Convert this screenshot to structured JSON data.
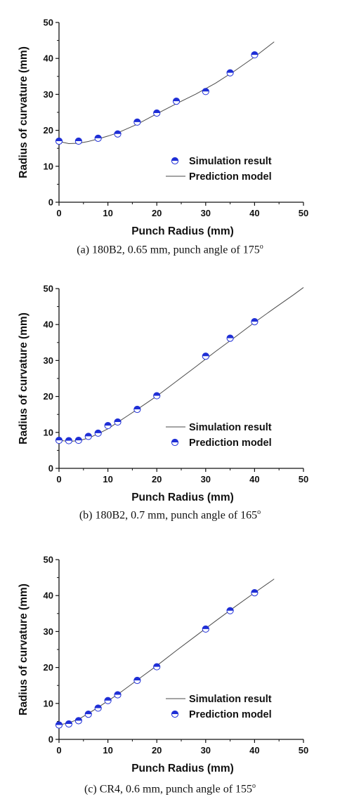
{
  "colors": {
    "marker": "#1f2fd6",
    "line": "#4a4a4a",
    "axis": "#111111"
  },
  "chart_data": [
    {
      "type": "line",
      "caption": "(a) 180B2, 0.65 mm, punch angle of 175",
      "caption_sup": "o",
      "xlabel": "Punch Radius (mm)",
      "ylabel": "Radius of curvature (mm)",
      "xlim": [
        0,
        50
      ],
      "ylim": [
        0,
        50
      ],
      "xticks": [
        "0",
        "10",
        "20",
        "30",
        "40",
        "50"
      ],
      "yticks": [
        "0",
        "10",
        "20",
        "30",
        "40",
        "50"
      ],
      "legend": [
        {
          "label": "Simulation result",
          "kind": "marker"
        },
        {
          "label": "Prediction model",
          "kind": "line"
        }
      ],
      "series": [
        {
          "kind": "marker",
          "x": [
            0,
            4,
            8,
            12,
            16,
            20,
            24,
            30,
            35,
            40
          ],
          "y": [
            17.0,
            17.0,
            17.8,
            19.0,
            22.3,
            24.8,
            28.1,
            30.8,
            36.0,
            41.0
          ]
        },
        {
          "kind": "line",
          "x": [
            0,
            1,
            2,
            4,
            6,
            8,
            10,
            12,
            16,
            20,
            24,
            28,
            32,
            36,
            40,
            44
          ],
          "y": [
            17.0,
            16.6,
            16.3,
            16.4,
            16.9,
            17.6,
            18.4,
            19.3,
            21.7,
            24.6,
            27.4,
            30.1,
            33.1,
            36.6,
            40.4,
            44.6
          ]
        }
      ]
    },
    {
      "type": "line",
      "caption": "(b) 180B2, 0.7 mm, punch angle of 165",
      "caption_sup": "o",
      "xlabel": "Punch Radius (mm)",
      "ylabel": "Radius of curvature (mm)",
      "xlim": [
        0,
        50
      ],
      "ylim": [
        0,
        50
      ],
      "xticks": [
        "0",
        "10",
        "20",
        "30",
        "40",
        "50"
      ],
      "yticks": [
        "0",
        "10",
        "20",
        "30",
        "40",
        "50"
      ],
      "legend": [
        {
          "label": "Simulation result",
          "kind": "line"
        },
        {
          "label": "Prediction model",
          "kind": "marker"
        }
      ],
      "series": [
        {
          "kind": "marker",
          "x": [
            0,
            2,
            4,
            6,
            8,
            10,
            12,
            16,
            20,
            30,
            35,
            40
          ],
          "y": [
            7.8,
            7.7,
            7.8,
            8.9,
            9.8,
            11.9,
            12.9,
            16.4,
            20.2,
            31.2,
            36.2,
            40.8
          ]
        },
        {
          "kind": "line",
          "x": [
            0,
            2,
            4,
            6,
            8,
            10,
            12,
            14,
            16,
            20,
            24,
            28,
            32,
            36,
            40,
            44,
            48,
            50
          ],
          "y": [
            7.8,
            7.5,
            7.7,
            8.4,
            9.6,
            11.0,
            12.8,
            14.6,
            16.4,
            20.1,
            24.2,
            28.3,
            32.5,
            36.5,
            40.6,
            44.5,
            48.3,
            50.3
          ]
        }
      ]
    },
    {
      "type": "line",
      "caption": "(c) CR4, 0.6 mm, punch angle of 155",
      "caption_sup": "o",
      "xlabel": "Punch Radius (mm)",
      "ylabel": "Radius of curvature (mm)",
      "xlim": [
        0,
        50
      ],
      "ylim": [
        0,
        50
      ],
      "xticks": [
        "0",
        "10",
        "20",
        "30",
        "40",
        "50"
      ],
      "yticks": [
        "0",
        "10",
        "20",
        "30",
        "40",
        "50"
      ],
      "legend": [
        {
          "label": "Simulation result",
          "kind": "line"
        },
        {
          "label": "Prediction model",
          "kind": "marker"
        }
      ],
      "series": [
        {
          "kind": "marker",
          "x": [
            0,
            2,
            4,
            6,
            8,
            10,
            12,
            16,
            20,
            30,
            35,
            40
          ],
          "y": [
            4.0,
            4.3,
            5.2,
            7.0,
            8.7,
            10.8,
            12.4,
            16.4,
            20.2,
            30.7,
            35.8,
            40.8
          ]
        },
        {
          "kind": "line",
          "x": [
            0,
            2,
            4,
            6,
            8,
            10,
            12,
            16,
            20,
            24,
            28,
            32,
            36,
            40,
            44
          ],
          "y": [
            4.0,
            4.6,
            5.6,
            7.2,
            8.9,
            10.7,
            12.5,
            16.5,
            20.5,
            24.7,
            28.8,
            32.9,
            36.9,
            40.8,
            44.6
          ]
        }
      ]
    }
  ]
}
